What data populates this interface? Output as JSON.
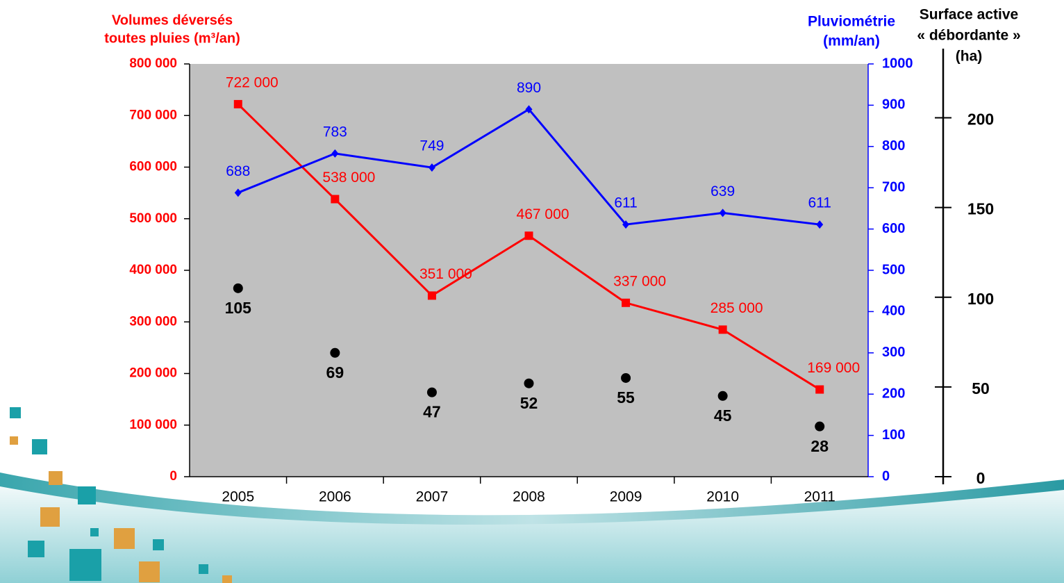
{
  "chart_data": {
    "type": "line",
    "categories": [
      "2005",
      "2006",
      "2007",
      "2008",
      "2009",
      "2010",
      "2011"
    ],
    "ylabel": [
      "Volumes déversés",
      "toutes pluies (m³/an)"
    ],
    "y2label": [
      "Pluviométrie",
      "(mm/an)"
    ],
    "y3label": [
      "Surface active",
      "« débordante »",
      "(ha)"
    ],
    "ylim": [
      0,
      800000
    ],
    "yticks": [
      0,
      {
        "value": 100000,
        "label": "100 000"
      },
      {
        "value": 200000,
        "label": "200 000"
      },
      {
        "value": 300000,
        "label": "300 000"
      },
      {
        "value": 400000,
        "label": "400 000"
      },
      {
        "value": 500000,
        "label": "500 000"
      },
      {
        "value": 600000,
        "label": "600 000"
      },
      {
        "value": 700000,
        "label": "700 000"
      },
      {
        "value": 800000,
        "label": "800 000"
      }
    ],
    "y2lim": [
      0,
      1000
    ],
    "y2ticks": [
      0,
      100,
      200,
      300,
      400,
      500,
      600,
      700,
      800,
      900,
      1000
    ],
    "y3lim": [
      0,
      230
    ],
    "y3ticks": [
      0,
      50,
      100,
      150,
      200
    ],
    "series": [
      {
        "color": "#ff0000",
        "axis": "y",
        "values": [
          722000,
          538000,
          351000,
          467000,
          337000,
          285000,
          169000
        ],
        "value_labels": [
          "722 000",
          "538 000",
          "351 000",
          "467 000",
          "337 000",
          "285 000",
          "169 000"
        ]
      },
      {
        "color": "#0000ff",
        "axis": "y2",
        "values": [
          688,
          783,
          749,
          890,
          611,
          639,
          611
        ]
      },
      {
        "color": "#000000",
        "axis": "y3",
        "type": "scatter",
        "values": [
          105,
          69,
          47,
          52,
          55,
          45,
          28
        ]
      }
    ]
  }
}
